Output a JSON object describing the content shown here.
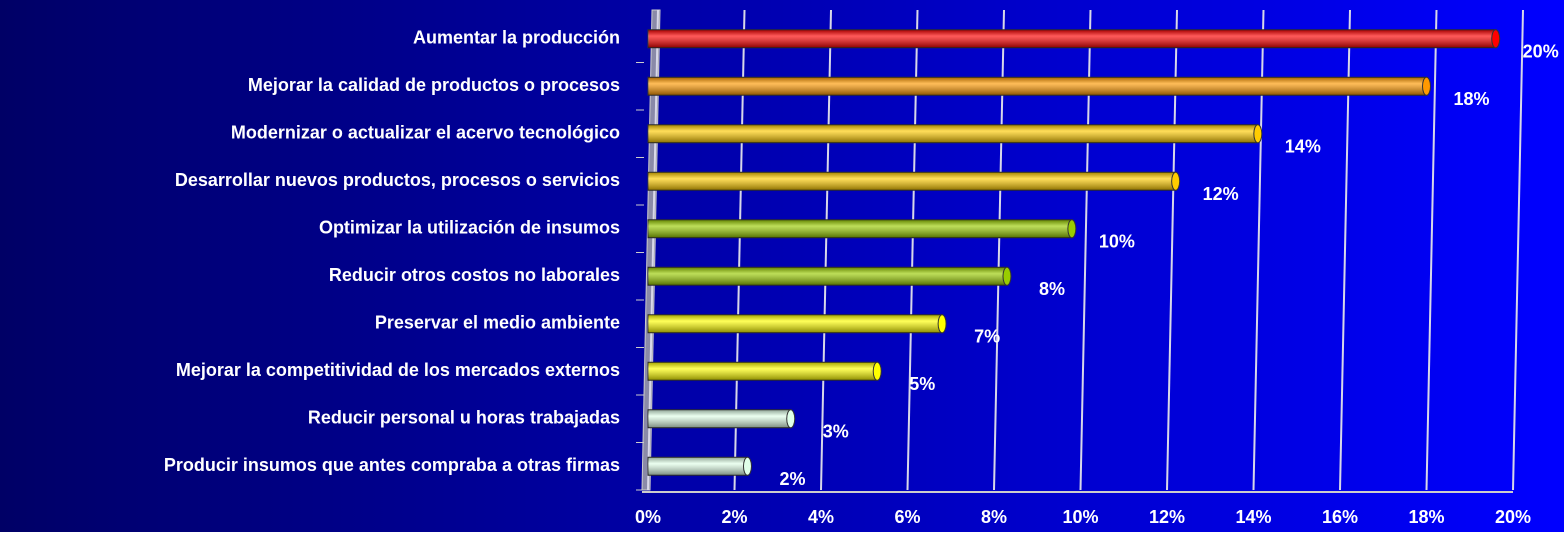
{
  "chart_data": {
    "type": "bar",
    "orientation": "horizontal",
    "categories": [
      "Aumentar la producción",
      "Mejorar la calidad de productos o procesos",
      "Modernizar o actualizar el acervo tecnológico",
      "Desarrollar nuevos productos, procesos o servicios",
      "Optimizar la utilización de insumos",
      "Reducir otros costos no laborales",
      "Preservar el medio ambiente",
      "Mejorar la competitividad de los mercados externos",
      "Reducir personal u horas trabajadas",
      "Producir insumos que antes compraba a otras firmas"
    ],
    "values": [
      19.6,
      18.0,
      14.1,
      12.2,
      9.8,
      8.3,
      6.8,
      5.3,
      3.3,
      2.3
    ],
    "value_labels": [
      "20%",
      "18%",
      "14%",
      "12%",
      "10%",
      "8%",
      "7%",
      "5%",
      "3%",
      "2%"
    ],
    "colors": [
      "#ff0000",
      "#ff9900",
      "#ffcc00",
      "#ffcc00",
      "#99cc00",
      "#99cc00",
      "#ffff00",
      "#ffff00",
      "#e0ffe8",
      "#e0ffe8"
    ],
    "xlim": [
      0,
      20
    ],
    "xticks": [
      {
        "value": 0,
        "label": "0%"
      },
      {
        "value": 2,
        "label": "2%"
      },
      {
        "value": 4,
        "label": "4%"
      },
      {
        "value": 6,
        "label": "6%"
      },
      {
        "value": 8,
        "label": "8%"
      },
      {
        "value": 10,
        "label": "10%"
      },
      {
        "value": 12,
        "label": "12%"
      },
      {
        "value": 14,
        "label": "14%"
      },
      {
        "value": 16,
        "label": "16%"
      },
      {
        "value": 18,
        "label": "18%"
      },
      {
        "value": 20,
        "label": "20%"
      }
    ],
    "grid": true
  }
}
